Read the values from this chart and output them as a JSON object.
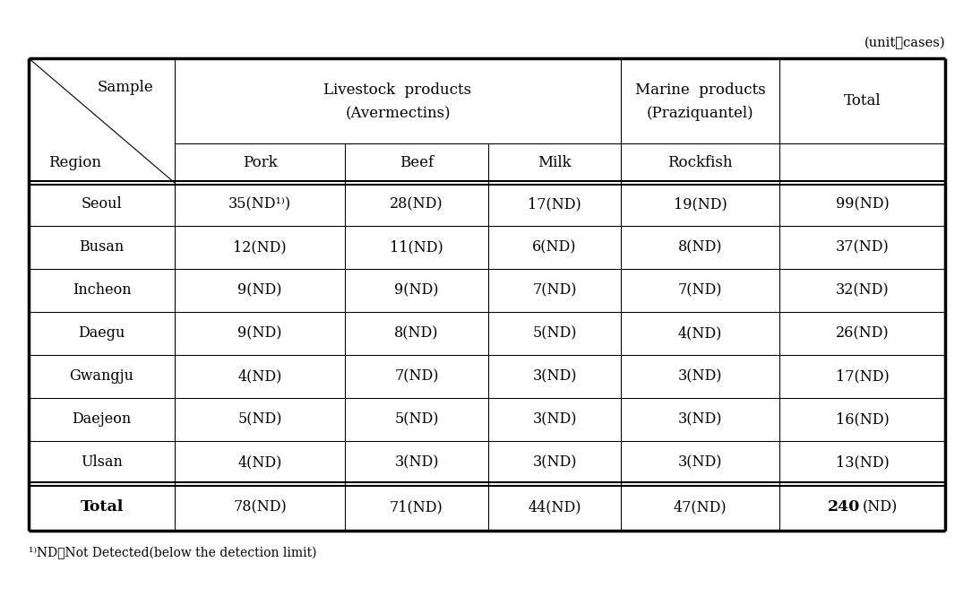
{
  "unit_label": "(unit：cases)",
  "corner_top": "Sample",
  "corner_bottom": "Region",
  "livestock_line1": "Livestock  products",
  "livestock_line2": "(Avermectins)",
  "marine_line1": "Marine  products",
  "marine_line2": "(Praziquantel)",
  "total_header": "Total",
  "subheaders": [
    "Pork",
    "Beef",
    "Milk",
    "Rockfish"
  ],
  "rows": [
    [
      "Seoul",
      "35(ND¹⁾)",
      "28(ND)",
      "17(ND)",
      "19(ND)",
      "99(ND)"
    ],
    [
      "Busan",
      "12(ND)",
      "11(ND)",
      "6(ND)",
      "8(ND)",
      "37(ND)"
    ],
    [
      "Incheon",
      "9(ND)",
      "9(ND)",
      "7(ND)",
      "7(ND)",
      "32(ND)"
    ],
    [
      "Daegu",
      "9(ND)",
      "8(ND)",
      "5(ND)",
      "4(ND)",
      "26(ND)"
    ],
    [
      "Gwangju",
      "4(ND)",
      "7(ND)",
      "3(ND)",
      "3(ND)",
      "17(ND)"
    ],
    [
      "Daejeon",
      "5(ND)",
      "5(ND)",
      "3(ND)",
      "3(ND)",
      "16(ND)"
    ],
    [
      "Ulsan",
      "4(ND)",
      "3(ND)",
      "3(ND)",
      "3(ND)",
      "13(ND)"
    ]
  ],
  "total_row": [
    "Total",
    "78(ND)",
    "71(ND)",
    "44(ND)",
    "47(ND)",
    "240(ND)"
  ],
  "footnote": "¹⁾ND：Not Detected(below the detection limit)",
  "bg_color": "#ffffff",
  "font_size_data": 11.5,
  "font_size_header": 12,
  "font_size_unit": 10.5,
  "font_size_footnote": 10
}
